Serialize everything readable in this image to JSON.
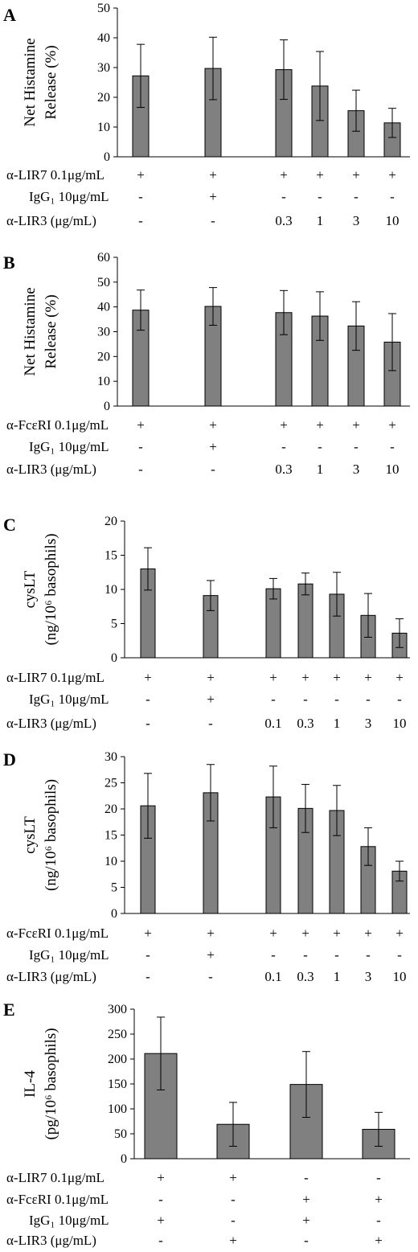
{
  "panels": [
    {
      "letter": "A",
      "ylabel_lines": [
        "Net Histamine",
        "Release (%)"
      ],
      "rows": [
        {
          "label": "α-LIR7 0.1μg/mL",
          "values": [
            "+",
            "+",
            "+",
            "+",
            "+",
            "+"
          ]
        },
        {
          "label": "IgG₁ 10μg/mL",
          "values": [
            "-",
            "+",
            "-",
            "-",
            "-",
            "-"
          ]
        },
        {
          "label": "α-LIR3 (μg/mL)",
          "values": [
            "-",
            "-",
            "0.3",
            "1",
            "3",
            "10"
          ]
        }
      ]
    },
    {
      "letter": "B",
      "ylabel_lines": [
        "Net Histamine",
        "Release (%)"
      ],
      "rows": [
        {
          "label": "α-FcεRI 0.1μg/mL",
          "values": [
            "+",
            "+",
            "+",
            "+",
            "+",
            "+"
          ]
        },
        {
          "label": "IgG₁ 10μg/mL",
          "values": [
            "-",
            "+",
            "-",
            "-",
            "-",
            "-"
          ]
        },
        {
          "label": "α-LIR3 (μg/mL)",
          "values": [
            "-",
            "-",
            "0.3",
            "1",
            "3",
            "10"
          ]
        }
      ]
    },
    {
      "letter": "C",
      "ylabel_lines": [
        "cysLT",
        "(ng/10⁶ basophils)"
      ],
      "rows": [
        {
          "label": "α-LIR7 0.1μg/mL",
          "values": [
            "+",
            "+",
            "+",
            "+",
            "+",
            "+",
            "+"
          ]
        },
        {
          "label": "IgG₁ 10μg/mL",
          "values": [
            "-",
            "+",
            "-",
            "-",
            "-",
            "-",
            "-"
          ]
        },
        {
          "label": "α-LIR3 (μg/mL)",
          "values": [
            "-",
            "-",
            "0.1",
            "0.3",
            "1",
            "3",
            "10"
          ]
        }
      ]
    },
    {
      "letter": "D",
      "ylabel_lines": [
        "cysLT",
        "(ng/10⁶ basophils)"
      ],
      "rows": [
        {
          "label": "α-FcεRI 0.1μg/mL",
          "values": [
            "+",
            "+",
            "+",
            "+",
            "+",
            "+",
            "+"
          ]
        },
        {
          "label": "IgG₁ 10μg/mL",
          "values": [
            "-",
            "+",
            "-",
            "-",
            "-",
            "-",
            "-"
          ]
        },
        {
          "label": "α-LIR3 (μg/mL)",
          "values": [
            "-",
            "-",
            "0.1",
            "0.3",
            "1",
            "3",
            "10"
          ]
        }
      ]
    },
    {
      "letter": "E",
      "ylabel_lines": [
        "IL-4",
        "(pg/10⁶ basophils)"
      ],
      "rows": [
        {
          "label": "α-LIR7 0.1μg/mL",
          "values": [
            "+",
            "+",
            "-",
            "-"
          ]
        },
        {
          "label": "α-FcεRI 0.1μg/mL",
          "values": [
            "-",
            "-",
            "+",
            "+"
          ]
        },
        {
          "label": "IgG₁ 10μg/mL",
          "values": [
            "+",
            "-",
            "+",
            "-"
          ]
        },
        {
          "label": "α-LIR3 (μg/mL)",
          "values": [
            "-",
            "+",
            "-",
            "+"
          ]
        }
      ]
    }
  ],
  "chart_data": [
    {
      "type": "bar",
      "panel": "A",
      "ylim": [
        0,
        50
      ],
      "yticks": [
        0,
        10,
        20,
        30,
        40,
        50
      ],
      "grid": false,
      "values": [
        27.2,
        29.7,
        29.3,
        23.8,
        15.5,
        11.4
      ],
      "errors": [
        10.6,
        10.5,
        10.0,
        11.6,
        6.9,
        4.9
      ]
    },
    {
      "type": "bar",
      "panel": "B",
      "ylim": [
        0,
        60
      ],
      "yticks": [
        0,
        10,
        20,
        30,
        40,
        50,
        60
      ],
      "grid": false,
      "values": [
        38.7,
        40.2,
        37.7,
        36.3,
        32.3,
        25.8
      ],
      "errors": [
        8.1,
        7.6,
        8.9,
        9.8,
        9.8,
        11.5
      ]
    },
    {
      "type": "bar",
      "panel": "C",
      "ylim": [
        0,
        20
      ],
      "yticks": [
        0,
        5,
        10,
        15,
        20
      ],
      "grid": false,
      "values": [
        13.0,
        9.1,
        10.1,
        10.8,
        9.3,
        6.2,
        3.6
      ],
      "errors": [
        3.1,
        2.2,
        1.5,
        1.6,
        3.2,
        3.2,
        2.1
      ]
    },
    {
      "type": "bar",
      "panel": "D",
      "ylim": [
        0,
        30
      ],
      "yticks": [
        0,
        5,
        10,
        15,
        20,
        25,
        30
      ],
      "grid": false,
      "values": [
        20.6,
        23.1,
        22.3,
        20.1,
        19.7,
        12.8,
        8.1
      ],
      "errors": [
        6.2,
        5.4,
        5.9,
        4.6,
        4.8,
        3.6,
        1.9
      ]
    },
    {
      "type": "bar",
      "panel": "E",
      "ylim": [
        0,
        300
      ],
      "yticks": [
        0,
        50,
        100,
        150,
        200,
        250,
        300
      ],
      "grid": false,
      "values": [
        211,
        69,
        149,
        59
      ],
      "errors": [
        73,
        44,
        66,
        34
      ]
    }
  ]
}
